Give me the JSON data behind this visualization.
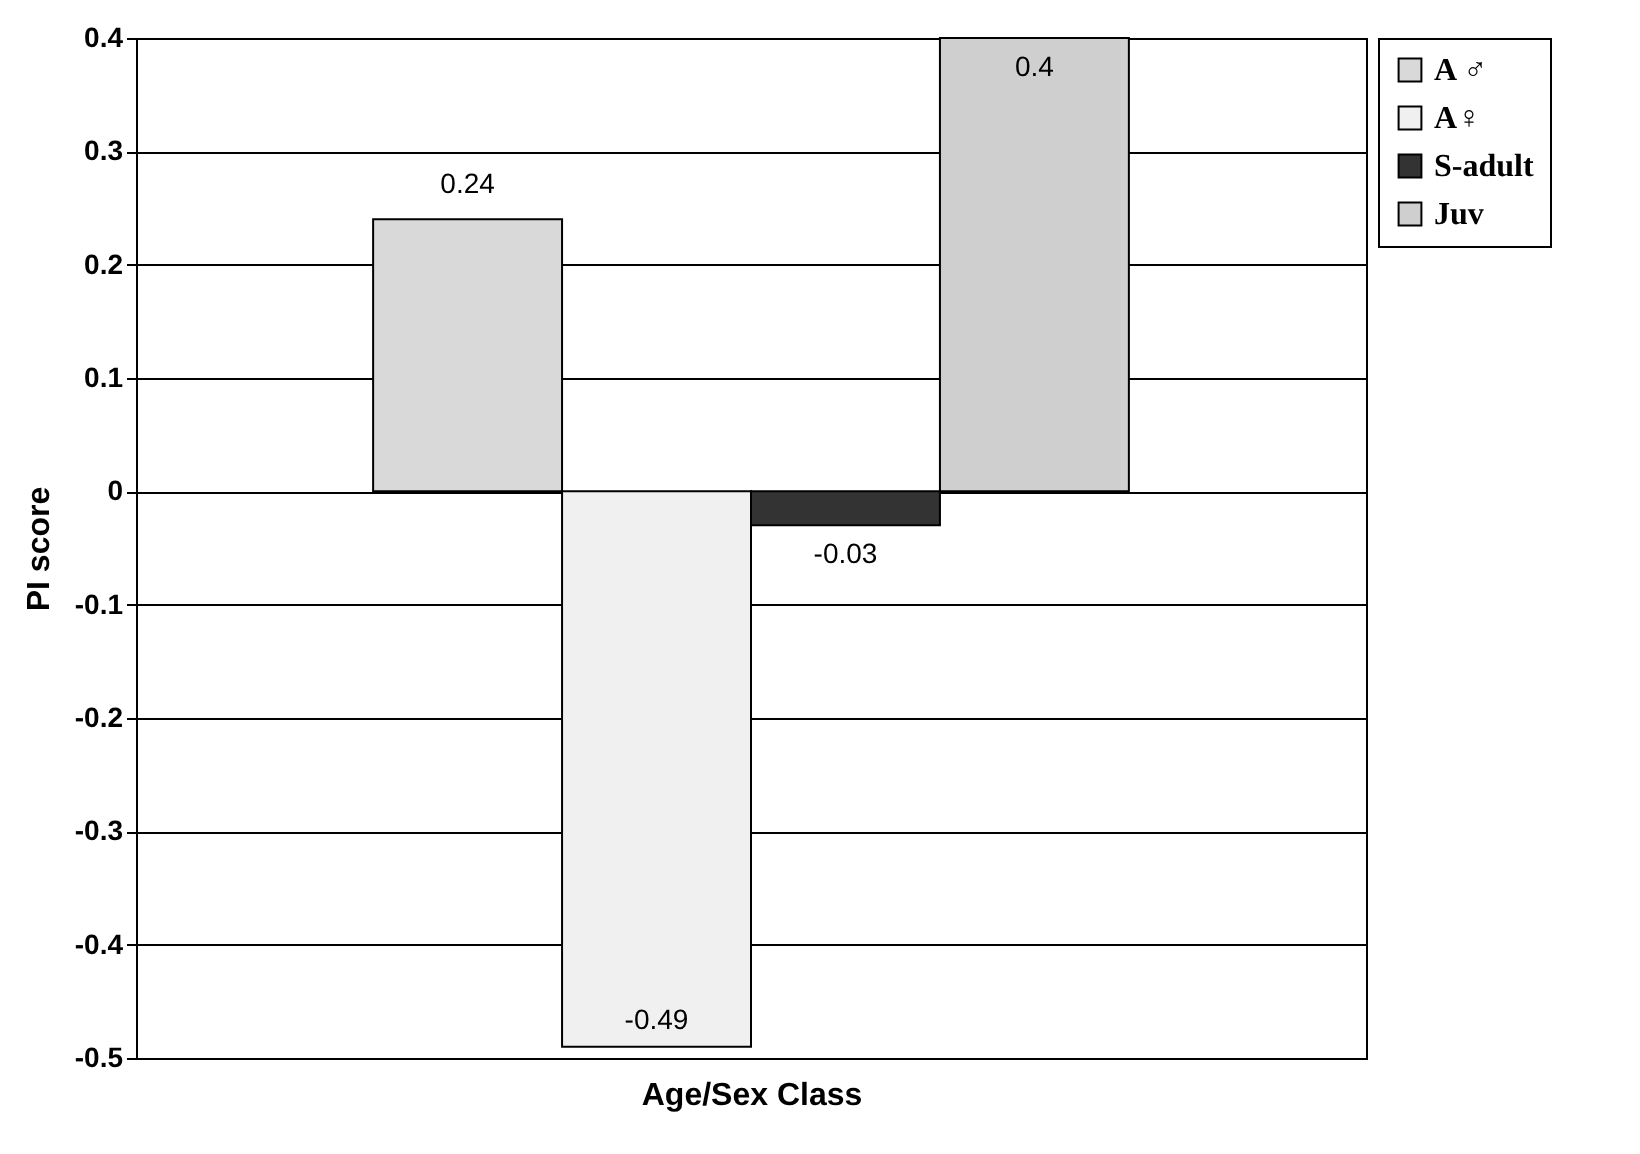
{
  "chart_data": {
    "type": "bar",
    "xlabel": "Age/Sex Class",
    "ylabel": "PI score",
    "categories": [
      null
    ],
    "series": [
      {
        "name": "A ♂",
        "color": "#d9d9d9",
        "values": [
          0.24
        ]
      },
      {
        "name": "A♀",
        "color": "#f0f0f0",
        "values": [
          -0.49
        ]
      },
      {
        "name": "S-adult",
        "color": "#333333",
        "values": [
          -0.03
        ]
      },
      {
        "name": "Juv",
        "color": "#cfcfcf",
        "values": [
          0.4
        ]
      }
    ],
    "ylim": [
      -0.5,
      0.4
    ],
    "yticks": [
      -0.5,
      -0.4,
      -0.3,
      -0.2,
      -0.1,
      0,
      0.1,
      0.2,
      0.3,
      0.4
    ],
    "grid": "y",
    "legend": "right",
    "data_labels": true
  }
}
